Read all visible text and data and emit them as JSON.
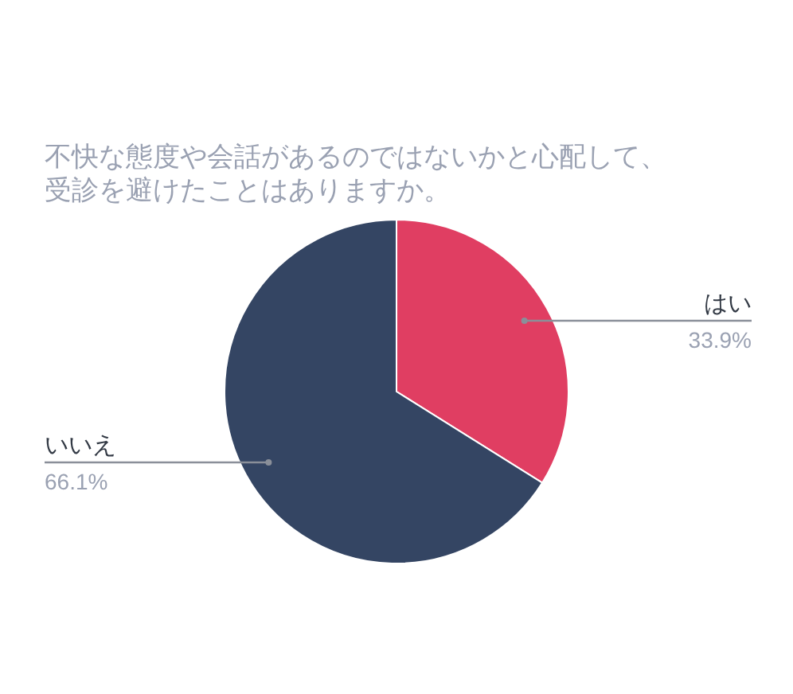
{
  "chart_data": {
    "type": "pie",
    "title": "不快な態度や会話があるのではないかと心配して、受診を避けたことはありますか。",
    "categories": [
      "はい",
      "いいえ"
    ],
    "values": [
      33.9,
      66.1
    ],
    "colors": [
      "#e03e62",
      "#344563"
    ],
    "value_labels": [
      "33.9%",
      "66.1%"
    ]
  }
}
